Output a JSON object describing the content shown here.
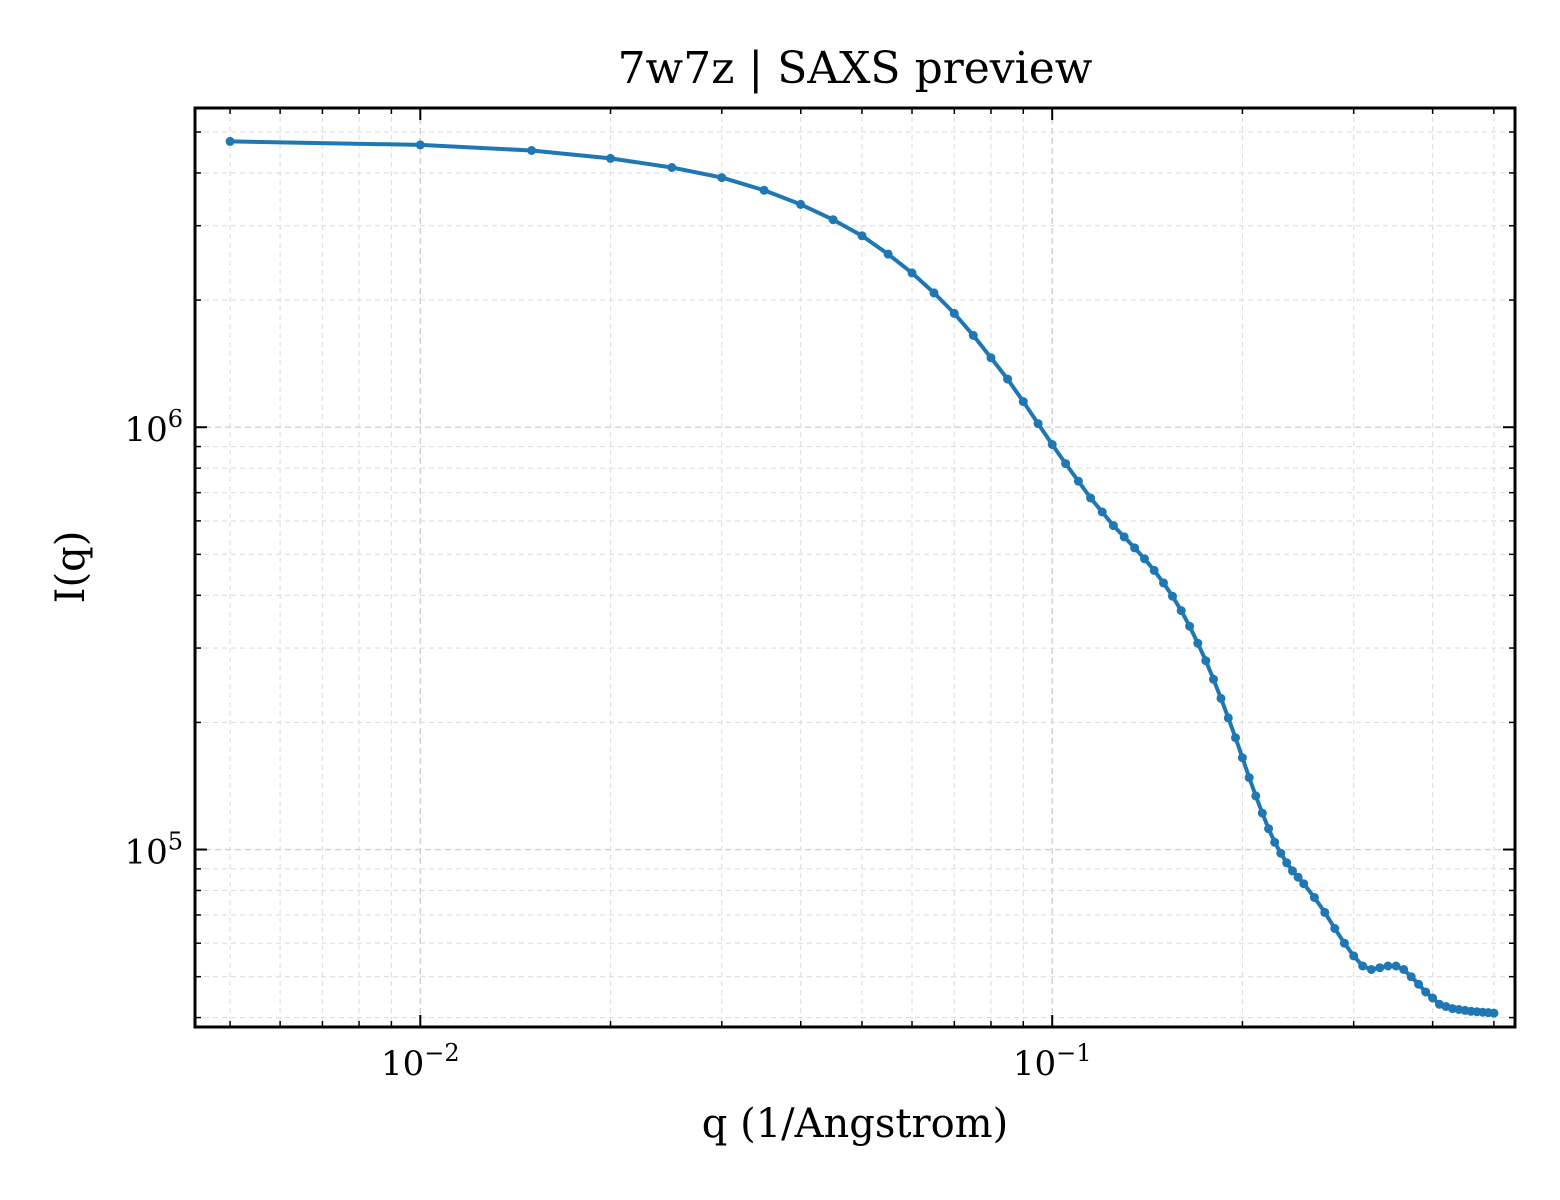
{
  "chart_data": {
    "type": "line",
    "title": "7w7z | SAXS preview",
    "xlabel": "q (1/Angstrom)",
    "ylabel": "I(q)",
    "xscale": "log",
    "yscale": "log",
    "xlim": [
      0.0044,
      0.54
    ],
    "ylim": [
      38000,
      5700000
    ],
    "grid": true,
    "marker": "circle",
    "x_ticks": [
      {
        "value": 0.01,
        "base": "10",
        "exp": "−2"
      },
      {
        "value": 0.1,
        "base": "10",
        "exp": "−1"
      }
    ],
    "y_ticks": [
      {
        "value": 100000,
        "base": "10",
        "exp": "5"
      },
      {
        "value": 1000000,
        "base": "10",
        "exp": "6"
      }
    ],
    "series": [
      {
        "color": "#1f77b4",
        "x": [
          0.005,
          0.01,
          0.015,
          0.02,
          0.025,
          0.03,
          0.035,
          0.04,
          0.045,
          0.05,
          0.055,
          0.06,
          0.065,
          0.07,
          0.075,
          0.08,
          0.085,
          0.09,
          0.095,
          0.1,
          0.105,
          0.11,
          0.115,
          0.12,
          0.125,
          0.13,
          0.135,
          0.14,
          0.145,
          0.15,
          0.155,
          0.16,
          0.165,
          0.17,
          0.175,
          0.18,
          0.185,
          0.19,
          0.195,
          0.2,
          0.205,
          0.21,
          0.215,
          0.22,
          0.225,
          0.23,
          0.235,
          0.24,
          0.245,
          0.25,
          0.26,
          0.27,
          0.28,
          0.29,
          0.3,
          0.31,
          0.32,
          0.33,
          0.34,
          0.35,
          0.36,
          0.37,
          0.38,
          0.39,
          0.4,
          0.41,
          0.42,
          0.43,
          0.44,
          0.45,
          0.46,
          0.47,
          0.48,
          0.49,
          0.5
        ],
        "y": [
          4750000,
          4660000,
          4520000,
          4330000,
          4120000,
          3900000,
          3640000,
          3370000,
          3100000,
          2840000,
          2570000,
          2320000,
          2080000,
          1860000,
          1650000,
          1460000,
          1300000,
          1150000,
          1020000,
          910000,
          820000,
          745000,
          680000,
          630000,
          585000,
          550000,
          518000,
          488000,
          458000,
          428000,
          398000,
          368000,
          338000,
          308000,
          280000,
          253000,
          228000,
          205000,
          184000,
          165000,
          148000,
          134000,
          122000,
          112000,
          104000,
          98000,
          93000,
          89000,
          86000,
          83000,
          77000,
          71000,
          65000,
          60000,
          56000,
          53000,
          52000,
          52500,
          53000,
          53000,
          52000,
          50000,
          48000,
          46000,
          44500,
          43000,
          42500,
          42000,
          41800,
          41600,
          41400,
          41300,
          41200,
          41100,
          41000
        ]
      }
    ]
  }
}
